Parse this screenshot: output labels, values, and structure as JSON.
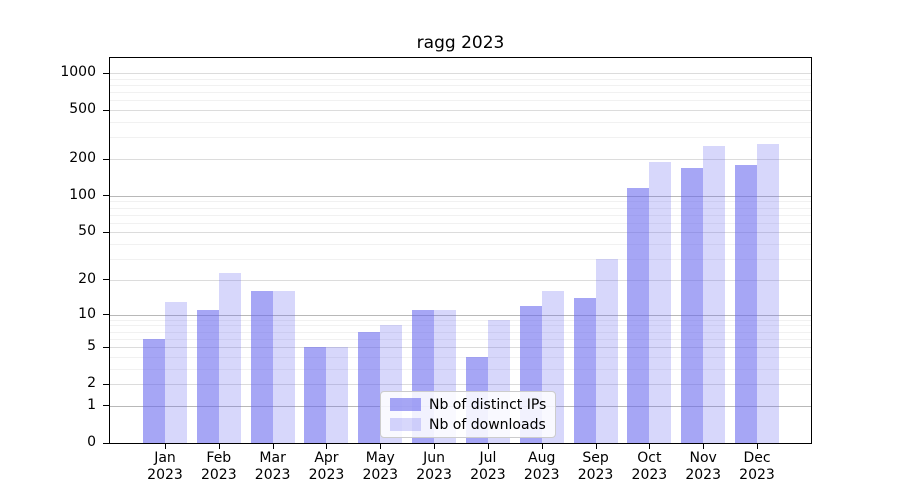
{
  "chart_data": {
    "type": "bar",
    "title": "ragg 2023",
    "categories": [
      "Jan 2023",
      "Feb 2023",
      "Mar 2023",
      "Apr 2023",
      "May 2023",
      "Jun 2023",
      "Jul 2023",
      "Aug 2023",
      "Sep 2023",
      "Oct 2023",
      "Nov 2023",
      "Dec 2023"
    ],
    "series": [
      {
        "name": "Nb of distinct IPs",
        "color": "#6666ee",
        "alpha": 0.58,
        "fill": "rgba(102,102,238,0.58)",
        "values": [
          6,
          11,
          16,
          5,
          7,
          11,
          4,
          12,
          14,
          115,
          170,
          180
        ]
      },
      {
        "name": "Nb of downloads",
        "color": "#6666ee",
        "alpha": 0.26,
        "fill": "rgba(102,102,238,0.26)",
        "values": [
          13,
          23,
          16,
          5,
          8,
          11,
          9,
          16,
          30,
          190,
          255,
          265
        ]
      }
    ],
    "xlabel": "",
    "ylabel": "",
    "y_scale": "log1p",
    "y_ticks": [
      0,
      1,
      2,
      5,
      10,
      20,
      50,
      100,
      200,
      500,
      1000
    ],
    "ylim": [
      0,
      1300
    ],
    "grid": true,
    "legend_position": "inside-bottom-center"
  },
  "colors": {
    "background": "#ffffff",
    "axis": "#000000",
    "grid_decade": "#b8b8b8",
    "grid_labeled": "#dcdcdc",
    "grid_minor": "#f1f1f1",
    "legend_border": "#cccccc"
  }
}
